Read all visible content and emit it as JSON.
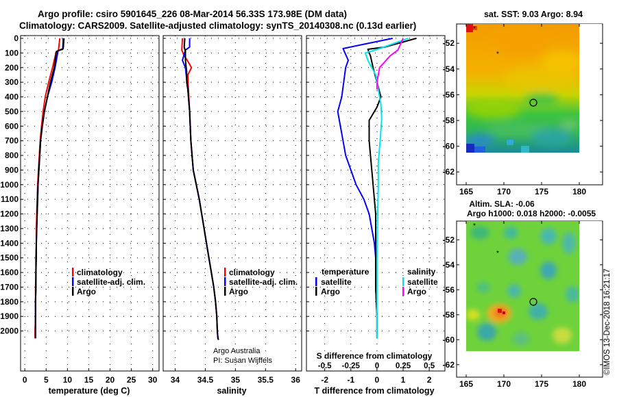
{
  "header": {
    "line1": "Argo profile: csiro 5901645_226 08-Mar-2014 56.33S 173.98E (DM data)",
    "line2": "Climatology: CARS2009. Satellite-adjusted climatology: synTS_20140308.nc (0.13d earlier)"
  },
  "depth_ticks": [
    "0",
    "100",
    "200",
    "300",
    "400",
    "500",
    "600",
    "700",
    "800",
    "900",
    "1000",
    "1100",
    "1200",
    "1300",
    "1400",
    "1500",
    "1600",
    "1700",
    "1800",
    "1900",
    "2000"
  ],
  "colors": {
    "climatology": "#ff0000",
    "satellite": "#0000ff",
    "argo": "#000000",
    "sal_satellite": "#00e5ee",
    "sal_argo": "#ff00ff"
  },
  "legend_profile": {
    "climatology": "climatology",
    "satellite": "satellite-adj. clim.",
    "argo": "Argo"
  },
  "legend_diff": {
    "temperature_title": "temperature",
    "salinity_title": "salinity",
    "satellite": "satellite",
    "argo": "Argo"
  },
  "credits": {
    "line1": "Argo Australia",
    "line2": "PI: Susan Wijffels"
  },
  "imos_stamp": "©IMOS 13-Dec-2018 16:21:17",
  "map_sst": {
    "title": "sat. SST: 9.03 Argo: 8.94",
    "xticks": [
      "165",
      "170",
      "175",
      "180"
    ],
    "yticks": [
      "-52",
      "-54",
      "-56",
      "-58",
      "-60",
      "-62"
    ]
  },
  "map_sla": {
    "title1": "Altim. SLA: -0.06",
    "title2": "Argo h1000: 0.018 h2000: -0.0055",
    "xticks": [
      "165",
      "170",
      "175",
      "180"
    ],
    "yticks": [
      "-52",
      "-54",
      "-56",
      "-58",
      "-60",
      "-62"
    ]
  },
  "chart_data": [
    {
      "type": "line",
      "name": "temperature",
      "xlabel": "temperature (deg C)",
      "ylabel": "depth",
      "xlim": [
        -1,
        31.5
      ],
      "ylim": [
        2060,
        0
      ],
      "xticks": [
        "0",
        "5",
        "10",
        "15",
        "20",
        "25",
        "30"
      ],
      "series": [
        {
          "name": "climatology",
          "color": "#ff0000",
          "x": [
            8.2,
            7.9,
            7.3,
            6.5,
            5.6,
            4.8,
            4.3,
            3.9,
            3.6,
            3.4,
            3.2,
            3.0,
            2.9,
            2.8,
            2.7,
            2.7,
            2.6,
            2.6,
            2.5,
            2.5,
            2.5,
            2.4,
            2.4
          ],
          "y": [
            0,
            80,
            100,
            200,
            300,
            400,
            500,
            600,
            700,
            800,
            900,
            1000,
            1100,
            1200,
            1300,
            1400,
            1500,
            1600,
            1700,
            1800,
            1900,
            2000,
            2050
          ]
        },
        {
          "name": "satellite-adj. clim.",
          "color": "#0000ff",
          "x": [
            9.0,
            8.9,
            7.8,
            7.1,
            6.3,
            5.3,
            4.6,
            4.1,
            3.7,
            3.5,
            3.3,
            3.1,
            3.0,
            2.9,
            2.8,
            2.7,
            2.6,
            2.6,
            2.6,
            2.5,
            2.5,
            2.5,
            2.5
          ],
          "y": [
            0,
            75,
            85,
            200,
            300,
            400,
            500,
            600,
            700,
            800,
            900,
            1000,
            1100,
            1200,
            1300,
            1400,
            1500,
            1600,
            1700,
            1800,
            1900,
            2000,
            2050
          ]
        },
        {
          "name": "Argo",
          "color": "#000000",
          "x": [
            9.2,
            9.0,
            7.4,
            6.9,
            6.0,
            5.3,
            4.6,
            4.1,
            3.7,
            3.5,
            3.3,
            3.1,
            3.0,
            2.9,
            2.8,
            2.7,
            2.7,
            2.6,
            2.6,
            2.5,
            2.5,
            2.5,
            2.5
          ],
          "y": [
            0,
            70,
            90,
            200,
            300,
            400,
            500,
            600,
            700,
            800,
            900,
            1000,
            1100,
            1200,
            1300,
            1400,
            1500,
            1600,
            1700,
            1800,
            1900,
            2000,
            2050
          ]
        }
      ]
    },
    {
      "type": "line",
      "name": "salinity",
      "xlabel": "salinity",
      "ylabel": "depth",
      "xlim": [
        33.8,
        36.1
      ],
      "ylim": [
        2060,
        0
      ],
      "xticks": [
        "34",
        "34.5",
        "35",
        "35.5",
        "36"
      ],
      "series": [
        {
          "name": "climatology",
          "color": "#ff0000",
          "x": [
            34.12,
            34.11,
            34.15,
            34.2,
            34.27,
            34.21,
            34.22,
            34.24,
            34.26,
            34.3,
            34.35,
            34.4,
            34.44,
            34.48,
            34.52,
            34.56,
            34.6,
            34.64,
            34.67,
            34.69,
            34.7,
            34.71,
            34.72
          ],
          "y": [
            0,
            80,
            120,
            150,
            200,
            250,
            350,
            500,
            700,
            900,
            1000,
            1100,
            1200,
            1300,
            1400,
            1500,
            1600,
            1700,
            1800,
            1900,
            2000,
            2050,
            2060
          ]
        },
        {
          "name": "satellite-adj. clim.",
          "color": "#0000ff",
          "x": [
            34.24,
            34.24,
            34.17,
            34.12,
            34.17,
            34.19,
            34.21,
            34.24,
            34.26,
            34.3,
            34.35,
            34.4,
            34.44,
            34.48,
            34.52,
            34.56,
            34.6,
            34.64,
            34.67,
            34.69,
            34.7,
            34.71,
            34.72
          ],
          "y": [
            0,
            60,
            80,
            150,
            200,
            280,
            350,
            500,
            700,
            900,
            1000,
            1100,
            1200,
            1300,
            1400,
            1500,
            1600,
            1700,
            1800,
            1900,
            2000,
            2050,
            2060
          ]
        },
        {
          "name": "Argo",
          "color": "#000000",
          "x": [
            34.16,
            34.15,
            34.17,
            34.17,
            34.19,
            34.19,
            34.21,
            34.24,
            34.26,
            34.3,
            34.35,
            34.4,
            34.44,
            34.48,
            34.52,
            34.56,
            34.6,
            34.64,
            34.67,
            34.69,
            34.7,
            34.71,
            34.72
          ],
          "y": [
            0,
            60,
            90,
            150,
            230,
            300,
            350,
            500,
            700,
            900,
            1000,
            1100,
            1200,
            1300,
            1400,
            1500,
            1600,
            1700,
            1800,
            1900,
            2000,
            2050,
            2060
          ]
        }
      ]
    },
    {
      "type": "line",
      "name": "difference",
      "xlabel": "T difference from climatology",
      "xlabel_top": "S difference from climatology",
      "xlim": [
        -2.7,
        2.6
      ],
      "ylim": [
        2060,
        0
      ],
      "xticks": [
        "-2",
        "-1",
        "0",
        "1",
        "2"
      ],
      "xticks_s": [
        "-0.5",
        "-0.25",
        "0",
        "0.25",
        "0.5"
      ],
      "series": [
        {
          "name": "temperature satellite",
          "color": "#0000ff",
          "x": [
            0.6,
            -0.5,
            -1.3,
            -1.1,
            -1.2,
            -1.35,
            -1.5,
            -1.4,
            -1.3,
            -1.2,
            -1.0,
            -0.8,
            -0.5,
            -0.3,
            -0.2,
            -0.1,
            -0.05,
            -0.05,
            0,
            0
          ],
          "y": [
            0,
            40,
            70,
            150,
            200,
            400,
            500,
            600,
            700,
            800,
            900,
            1000,
            1100,
            1200,
            1300,
            1400,
            1500,
            1700,
            1900,
            2050
          ]
        },
        {
          "name": "temperature Argo",
          "color": "#000000",
          "x": [
            1.5,
            0.3,
            -0.35,
            -0.25,
            -0.15,
            0,
            0.15,
            0,
            -0.3,
            -0.3,
            -0.25,
            -0.2,
            -0.15,
            -0.1,
            -0.05,
            -0.05,
            -0.05,
            -0.05,
            0,
            0
          ],
          "y": [
            0,
            60,
            75,
            120,
            200,
            300,
            400,
            470,
            560,
            700,
            800,
            900,
            1000,
            1100,
            1200,
            1300,
            1500,
            1700,
            1900,
            2050
          ]
        },
        {
          "name": "salinity satellite",
          "color": "#00e5ee",
          "x": [
            1.2,
            0.1,
            -0.45,
            -0.35,
            -0.05,
            0.05,
            0.15,
            0.18,
            0.12,
            0.05,
            0.05,
            0.03,
            0,
            0,
            0
          ],
          "y": [
            0,
            70,
            100,
            150,
            250,
            350,
            450,
            550,
            700,
            850,
            1000,
            1200,
            1500,
            1800,
            2050
          ]
        },
        {
          "name": "salinity Argo",
          "color": "#ff00ff",
          "x": [
            1.0,
            0.8,
            0.5,
            0.1,
            0,
            0
          ],
          "y": [
            0,
            80,
            120,
            200,
            300,
            350
          ]
        }
      ]
    },
    {
      "type": "heatmap",
      "name": "sat-sst-map",
      "title": "sat. SST: 9.03 Argo: 8.94",
      "xlim": [
        164.5,
        183
      ],
      "ylim": [
        -63,
        -50.5
      ],
      "data_extent_x": [
        165,
        180
      ],
      "data_extent_y": [
        -60,
        -50.5
      ],
      "argo_position": [
        173.98,
        -56.33
      ]
    },
    {
      "type": "heatmap",
      "name": "altim-sla-map",
      "title": "Altim. SLA: -0.06",
      "xlim": [
        164.5,
        183
      ],
      "ylim": [
        -63,
        -50.5
      ],
      "data_extent_x": [
        165,
        180
      ],
      "data_extent_y": [
        -60,
        -50.5
      ],
      "argo_position": [
        173.98,
        -56.33
      ]
    }
  ]
}
